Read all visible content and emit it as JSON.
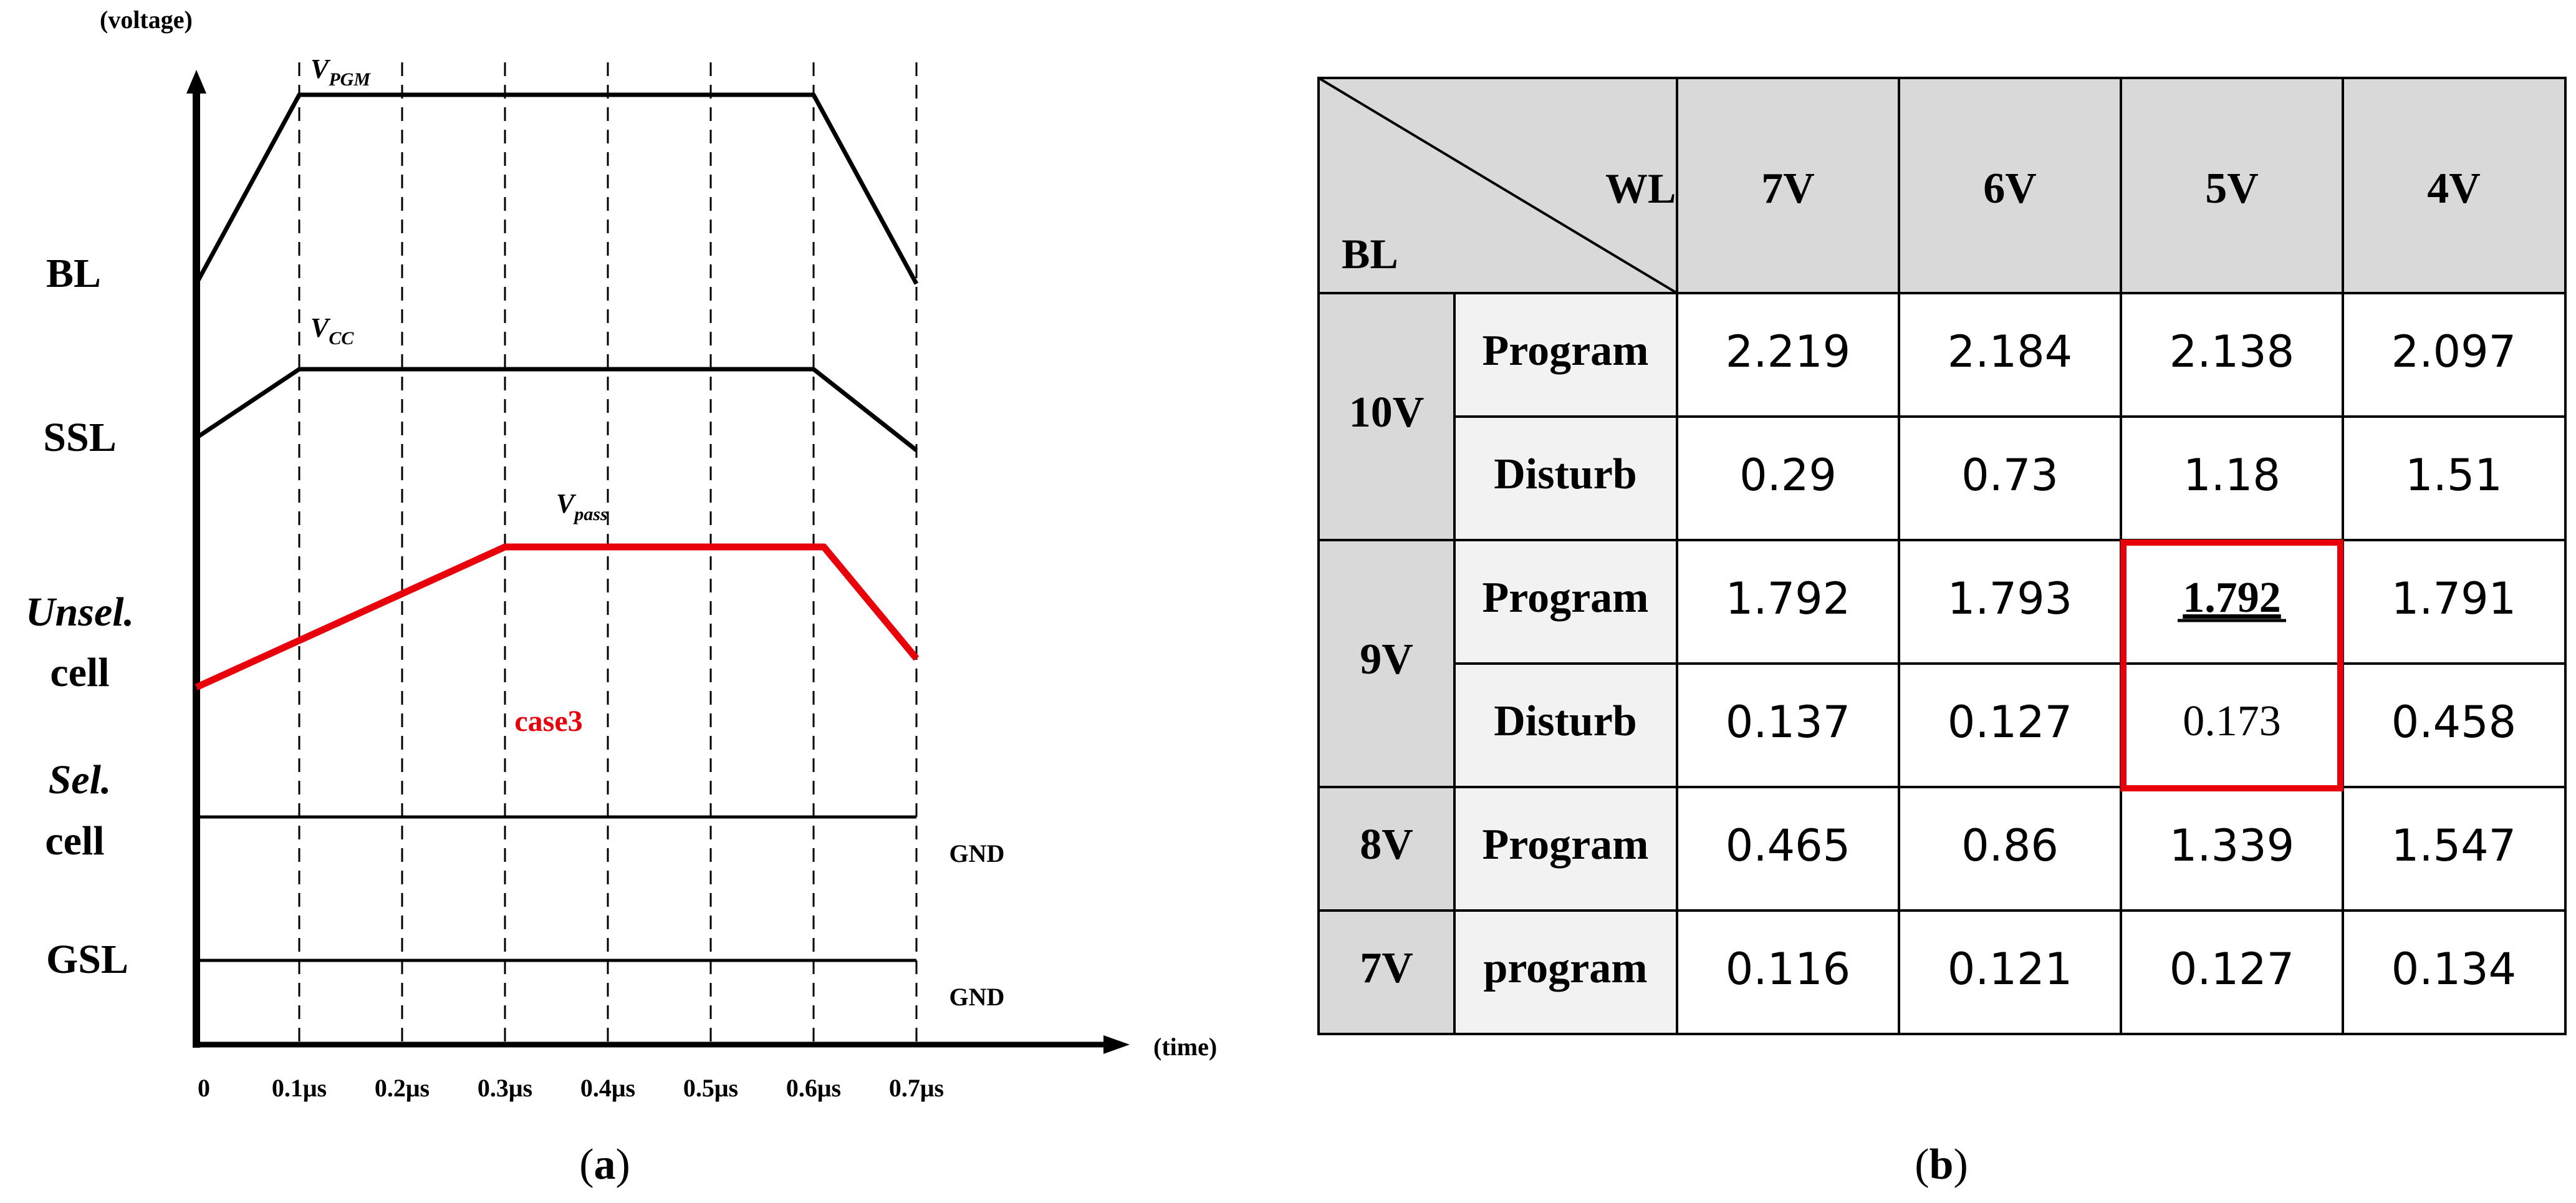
{
  "panel_a": {
    "y_axis_label": "(voltage)",
    "x_axis_label": "(time)",
    "time_ticks": [
      "0",
      "0.1μs",
      "0.2μs",
      "0.3μs",
      "0.4μs",
      "0.5μs",
      "0.6μs",
      "0.7μs"
    ],
    "tick_times": [
      0,
      0.1,
      0.2,
      0.3,
      0.4,
      0.5,
      0.6,
      0.7
    ],
    "rows": [
      {
        "label": "BL"
      },
      {
        "label": "SSL"
      },
      {
        "label_line1": "Unsel.",
        "label_line2": "cell"
      },
      {
        "label_line1": "Sel.",
        "label_line2": "cell"
      },
      {
        "label": "GSL"
      }
    ],
    "signals": {
      "bl": {
        "label_main": "V",
        "label_sub": "PGM",
        "times": [
          0,
          0.1,
          0.6,
          0.7
        ],
        "color": "#000000"
      },
      "ssl": {
        "label_main": "V",
        "label_sub": "CC",
        "times": [
          0,
          0.1,
          0.6,
          0.7
        ],
        "color": "#000000"
      },
      "unsel": {
        "label_main": "V",
        "label_sub": "pass",
        "times": [
          0,
          0.3,
          0.61,
          0.7
        ],
        "color": "#e8000b"
      },
      "sel": {
        "level_label": "GND",
        "color": "#000000"
      },
      "gsl": {
        "level_label": "GND",
        "color": "#000000"
      }
    },
    "case_label": "case3",
    "case_color": "#e8000b",
    "caption": "(a)"
  },
  "panel_b": {
    "header": {
      "wl_label": "WL",
      "bl_label": "BL",
      "columns": [
        "7V",
        "6V",
        "5V",
        "4V"
      ]
    },
    "groups": [
      {
        "bl": "10V",
        "rows": [
          {
            "op": "Program",
            "values": [
              "2.219",
              "2.184",
              "2.138",
              "2.097"
            ]
          },
          {
            "op": "Disturb",
            "values": [
              "0.29",
              "0.73",
              "1.18",
              "1.51"
            ]
          }
        ]
      },
      {
        "bl": "9V",
        "rows": [
          {
            "op": "Program",
            "values": [
              "1.792",
              "1.793",
              "1.792",
              "1.791"
            ]
          },
          {
            "op": "Disturb",
            "values": [
              "0.137",
              "0.127",
              "0.173",
              "0.458"
            ]
          }
        ]
      },
      {
        "bl": "8V",
        "rows": [
          {
            "op": "Program",
            "values": [
              "0.465",
              "0.86",
              "1.339",
              "1.547"
            ]
          }
        ]
      },
      {
        "bl": "7V",
        "rows": [
          {
            "op": "program",
            "values": [
              "0.116",
              "0.121",
              "0.127",
              "0.134"
            ]
          }
        ]
      }
    ],
    "highlight": {
      "group": 1,
      "column": 2,
      "color": "#e8000b"
    },
    "header_fill": "#d9d9d9",
    "op_fill": "#f2f2f2",
    "caption": "(b)"
  }
}
